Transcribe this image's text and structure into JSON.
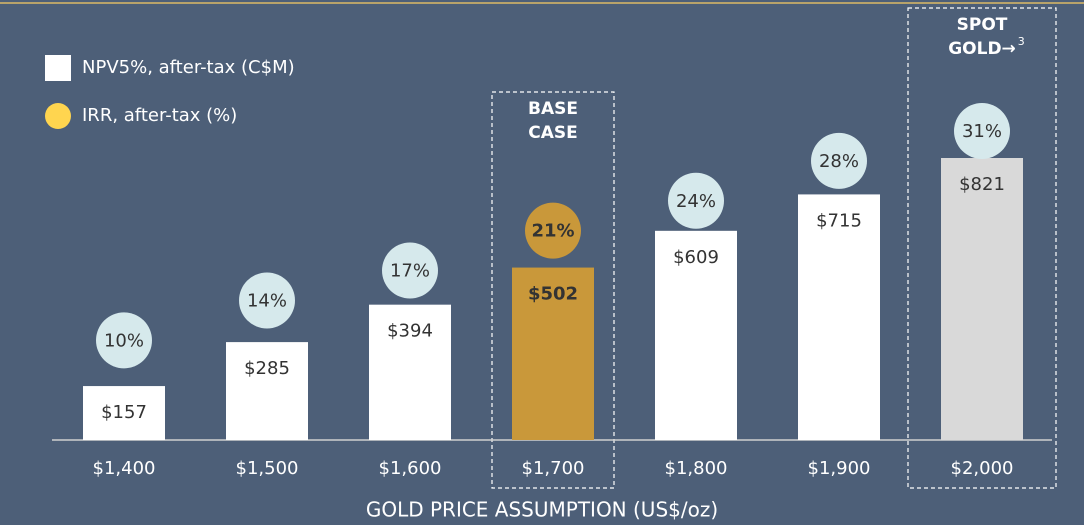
{
  "chart_data": {
    "type": "bar",
    "x_label": "GOLD PRICE ASSUMPTION (US$/oz)",
    "categories": [
      "$1,400",
      "$1,500",
      "$1,600",
      "$1,700",
      "$1,800",
      "$1,900",
      "$2,000"
    ],
    "series": [
      {
        "name": "NPV5%, after-tax (C$M)",
        "color": "#ffffff",
        "colors": [
          "#ffffff",
          "#ffffff",
          "#ffffff",
          "#c9983a",
          "#ffffff",
          "#ffffff",
          "#d9d9d9"
        ],
        "values": [
          157,
          285,
          394,
          502,
          609,
          715,
          821
        ],
        "value_labels": [
          "$157",
          "$285",
          "$394",
          "$502",
          "$609",
          "$715",
          "$821"
        ]
      },
      {
        "name": "IRR, after-tax (%)",
        "color": "#ffd54f",
        "colors": [
          "#d6e9ec",
          "#d6e9ec",
          "#d6e9ec",
          "#c9983a",
          "#d6e9ec",
          "#d6e9ec",
          "#d6e9ec"
        ],
        "values": [
          10,
          14,
          17,
          21,
          24,
          28,
          31
        ],
        "value_labels": [
          "10%",
          "14%",
          "17%",
          "21%",
          "24%",
          "28%",
          "31%"
        ]
      }
    ],
    "annotations": [
      {
        "lines": [
          "BASE",
          "CASE"
        ],
        "category": "$1,700"
      },
      {
        "lines": [
          "SPOT",
          "GOLD→"
        ],
        "superscript": "3",
        "category": "$2,000"
      }
    ],
    "legend": "upper left"
  }
}
